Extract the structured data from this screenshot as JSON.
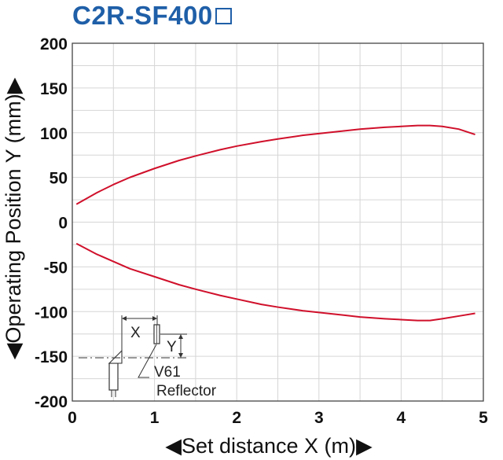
{
  "title": "C2R-SF400",
  "chart_data": {
    "type": "line",
    "title": "C2R-SF400",
    "xlabel": "◀Set distance X (m)▶",
    "ylabel": "◀Operating Position Y (mm)▶",
    "xlim": [
      0,
      5
    ],
    "ylim": [
      -200,
      200
    ],
    "xticks": [
      0,
      1,
      2,
      3,
      4,
      5
    ],
    "yticks": [
      200,
      150,
      100,
      50,
      0,
      -50,
      -100,
      -150,
      -200
    ],
    "grid": true,
    "line_color": "#d0102b",
    "series": [
      {
        "x": [
          0.05,
          0.3,
          0.5,
          0.7,
          1.0,
          1.3,
          1.5,
          1.8,
          2.0,
          2.3,
          2.5,
          2.8,
          3.0,
          3.3,
          3.5,
          3.8,
          4.0,
          4.2,
          4.35,
          4.5,
          4.7,
          4.9
        ],
        "values": [
          20,
          33,
          42,
          50,
          60,
          69,
          74,
          81,
          85,
          90,
          93,
          97,
          99,
          102,
          104,
          106,
          107,
          108,
          108,
          107,
          104,
          98
        ]
      },
      {
        "x": [
          0.05,
          0.3,
          0.5,
          0.7,
          1.0,
          1.3,
          1.5,
          1.8,
          2.0,
          2.3,
          2.5,
          2.8,
          3.0,
          3.3,
          3.5,
          3.8,
          4.0,
          4.2,
          4.35,
          4.5,
          4.7,
          4.9
        ],
        "values": [
          -24,
          -36,
          -44,
          -52,
          -61,
          -70,
          -75,
          -82,
          -86,
          -92,
          -95,
          -99,
          -101,
          -104,
          -106,
          -108,
          -109,
          -110,
          -110,
          -108,
          -105,
          -102
        ]
      }
    ],
    "inset": {
      "x_label": "X",
      "y_label": "Y",
      "reflector_label": "V61",
      "reflector_caption": "Reflector"
    }
  }
}
